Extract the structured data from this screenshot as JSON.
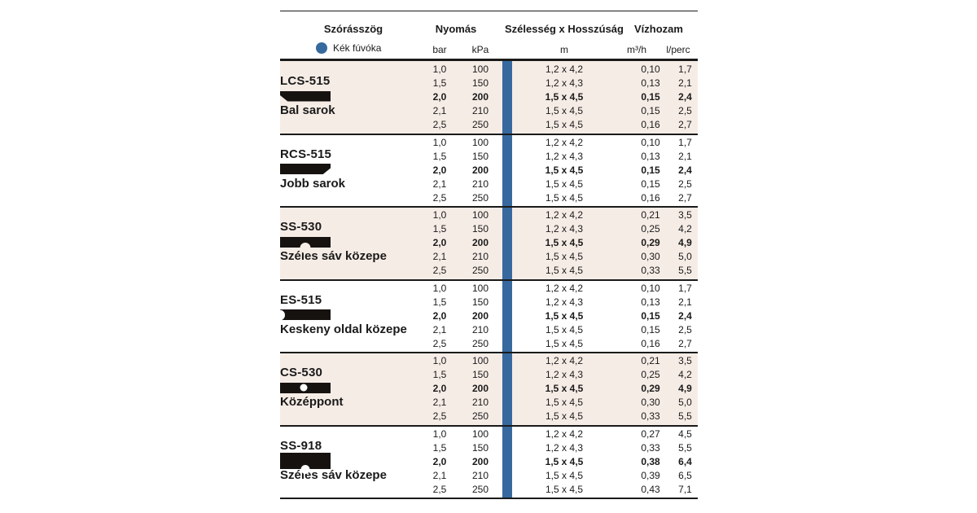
{
  "colors": {
    "accent_blue": "#37699f",
    "row_shade": "#f6ece6",
    "ink": "#1a1a1a"
  },
  "header": {
    "spray_angle": "Szórásszög",
    "nozzle_label": "Kék fúvóka",
    "pressure": "Nyomás",
    "pressure_unit_1": "bar",
    "pressure_unit_2": "kPa",
    "dimensions": "Szélesség x Hosszúság",
    "dimensions_unit": "m",
    "flow": "Vízhozam",
    "flow_unit_1": "m³/h",
    "flow_unit_2": "l/perc"
  },
  "groups": [
    {
      "model": "LCS-515",
      "description": "Bal sarok",
      "icon": "pattern-left-corner",
      "shaded": true,
      "rows": [
        {
          "bar": "1,0",
          "kpa": "100",
          "dim": "1,2 x 4,2",
          "m3h": "0,10",
          "lpm": "1,7",
          "bold": false
        },
        {
          "bar": "1,5",
          "kpa": "150",
          "dim": "1,2 x 4,3",
          "m3h": "0,13",
          "lpm": "2,1",
          "bold": false
        },
        {
          "bar": "2,0",
          "kpa": "200",
          "dim": "1,5 x 4,5",
          "m3h": "0,15",
          "lpm": "2,4",
          "bold": true
        },
        {
          "bar": "2,1",
          "kpa": "210",
          "dim": "1,5 x 4,5",
          "m3h": "0,15",
          "lpm": "2,5",
          "bold": false
        },
        {
          "bar": "2,5",
          "kpa": "250",
          "dim": "1,5 x 4,5",
          "m3h": "0,16",
          "lpm": "2,7",
          "bold": false
        }
      ]
    },
    {
      "model": "RCS-515",
      "description": "Jobb sarok",
      "icon": "pattern-right-corner",
      "shaded": false,
      "rows": [
        {
          "bar": "1,0",
          "kpa": "100",
          "dim": "1,2 x 4,2",
          "m3h": "0,10",
          "lpm": "1,7",
          "bold": false
        },
        {
          "bar": "1,5",
          "kpa": "150",
          "dim": "1,2 x 4,3",
          "m3h": "0,13",
          "lpm": "2,1",
          "bold": false
        },
        {
          "bar": "2,0",
          "kpa": "200",
          "dim": "1,5 x 4,5",
          "m3h": "0,15",
          "lpm": "2,4",
          "bold": true
        },
        {
          "bar": "2,1",
          "kpa": "210",
          "dim": "1,5 x 4,5",
          "m3h": "0,15",
          "lpm": "2,5",
          "bold": false
        },
        {
          "bar": "2,5",
          "kpa": "250",
          "dim": "1,5 x 4,5",
          "m3h": "0,16",
          "lpm": "2,7",
          "bold": false
        }
      ]
    },
    {
      "model": "SS-530",
      "description": "Széles sáv közepe",
      "icon": "pattern-bottom-notch",
      "shaded": true,
      "rows": [
        {
          "bar": "1,0",
          "kpa": "100",
          "dim": "1,2 x 4,2",
          "m3h": "0,21",
          "lpm": "3,5",
          "bold": false
        },
        {
          "bar": "1,5",
          "kpa": "150",
          "dim": "1,2 x 4,3",
          "m3h": "0,25",
          "lpm": "4,2",
          "bold": false
        },
        {
          "bar": "2,0",
          "kpa": "200",
          "dim": "1,5 x 4,5",
          "m3h": "0,29",
          "lpm": "4,9",
          "bold": true
        },
        {
          "bar": "2,1",
          "kpa": "210",
          "dim": "1,5 x 4,5",
          "m3h": "0,30",
          "lpm": "5,0",
          "bold": false
        },
        {
          "bar": "2,5",
          "kpa": "250",
          "dim": "1,5 x 4,5",
          "m3h": "0,33",
          "lpm": "5,5",
          "bold": false
        }
      ]
    },
    {
      "model": "ES-515",
      "description": "Keskeny oldal közepe",
      "icon": "pattern-left-notch",
      "shaded": false,
      "rows": [
        {
          "bar": "1,0",
          "kpa": "100",
          "dim": "1,2 x 4,2",
          "m3h": "0,10",
          "lpm": "1,7",
          "bold": false
        },
        {
          "bar": "1,5",
          "kpa": "150",
          "dim": "1,2 x 4,3",
          "m3h": "0,13",
          "lpm": "2,1",
          "bold": false
        },
        {
          "bar": "2,0",
          "kpa": "200",
          "dim": "1,5 x 4,5",
          "m3h": "0,15",
          "lpm": "2,4",
          "bold": true
        },
        {
          "bar": "2,1",
          "kpa": "210",
          "dim": "1,5 x 4,5",
          "m3h": "0,15",
          "lpm": "2,5",
          "bold": false
        },
        {
          "bar": "2,5",
          "kpa": "250",
          "dim": "1,5 x 4,5",
          "m3h": "0,16",
          "lpm": "2,7",
          "bold": false
        }
      ]
    },
    {
      "model": "CS-530",
      "description": "Középpont",
      "icon": "pattern-center-hole",
      "shaded": true,
      "rows": [
        {
          "bar": "1,0",
          "kpa": "100",
          "dim": "1,2 x 4,2",
          "m3h": "0,21",
          "lpm": "3,5",
          "bold": false
        },
        {
          "bar": "1,5",
          "kpa": "150",
          "dim": "1,2 x 4,3",
          "m3h": "0,25",
          "lpm": "4,2",
          "bold": false
        },
        {
          "bar": "2,0",
          "kpa": "200",
          "dim": "1,5 x 4,5",
          "m3h": "0,29",
          "lpm": "4,9",
          "bold": true
        },
        {
          "bar": "2,1",
          "kpa": "210",
          "dim": "1,5 x 4,5",
          "m3h": "0,30",
          "lpm": "5,0",
          "bold": false
        },
        {
          "bar": "2,5",
          "kpa": "250",
          "dim": "1,5 x 4,5",
          "m3h": "0,33",
          "lpm": "5,5",
          "bold": false
        }
      ]
    },
    {
      "model": "SS-918",
      "description": "Széles sáv közepe",
      "icon": "pattern-bottom-notch-tall",
      "shaded": false,
      "rows": [
        {
          "bar": "1,0",
          "kpa": "100",
          "dim": "1,2 x 4,2",
          "m3h": "0,27",
          "lpm": "4,5",
          "bold": false
        },
        {
          "bar": "1,5",
          "kpa": "150",
          "dim": "1,2 x 4,3",
          "m3h": "0,33",
          "lpm": "5,5",
          "bold": false
        },
        {
          "bar": "2,0",
          "kpa": "200",
          "dim": "1,5 x 4,5",
          "m3h": "0,38",
          "lpm": "6,4",
          "bold": true
        },
        {
          "bar": "2,1",
          "kpa": "210",
          "dim": "1,5 x 4,5",
          "m3h": "0,39",
          "lpm": "6,5",
          "bold": false
        },
        {
          "bar": "2,5",
          "kpa": "250",
          "dim": "1,5 x 4,5",
          "m3h": "0,43",
          "lpm": "7,1",
          "bold": false
        }
      ]
    }
  ]
}
